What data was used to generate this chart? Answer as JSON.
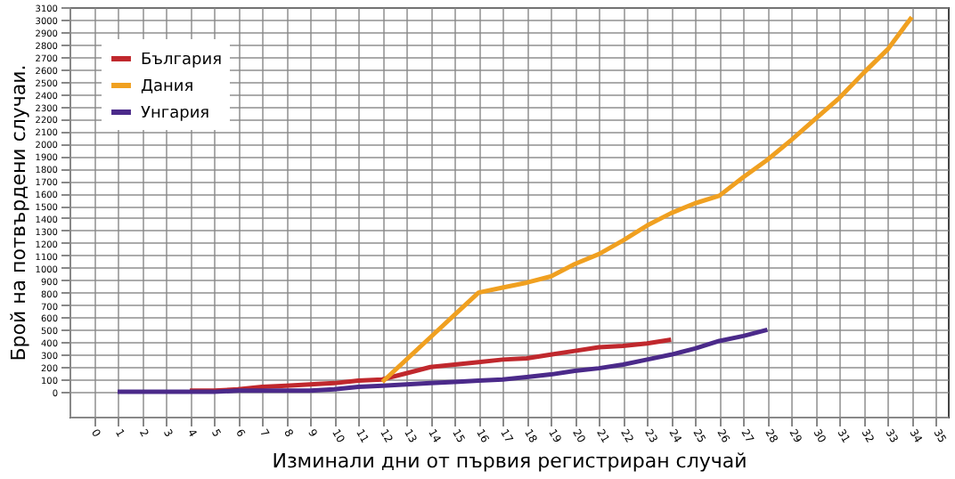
{
  "chart_data": {
    "type": "line",
    "xlabel": "Изминали дни от първия регистриран случай",
    "ylabel": "Брой на потвърдени случаи.",
    "x": [
      1,
      2,
      3,
      4,
      5,
      6,
      7,
      8,
      9,
      10,
      11,
      12,
      13,
      14,
      15,
      16,
      17,
      18,
      19,
      20,
      21,
      22,
      23,
      24,
      25,
      26,
      27,
      28,
      29,
      30,
      31,
      32,
      33,
      34
    ],
    "series": [
      {
        "name": "България",
        "color": "#c0282d",
        "values": [
          null,
          null,
          null,
          10,
          10,
          20,
          40,
          50,
          60,
          70,
          90,
          100,
          150,
          200,
          220,
          240,
          260,
          270,
          300,
          330,
          360,
          370,
          390,
          420,
          null,
          null,
          null,
          null,
          null,
          null,
          null,
          null,
          null,
          null
        ]
      },
      {
        "name": "Дания",
        "color": "#f0a020",
        "values": [
          null,
          null,
          null,
          null,
          null,
          null,
          null,
          null,
          null,
          null,
          null,
          80,
          260,
          440,
          620,
          800,
          840,
          880,
          930,
          1030,
          1110,
          1220,
          1340,
          1440,
          1520,
          1580,
          1730,
          1870,
          2030,
          2200,
          2370,
          2570,
          2760,
          3020
        ]
      },
      {
        "name": "Унгария",
        "color": "#4b2a8a",
        "values": [
          0,
          0,
          0,
          0,
          0,
          10,
          10,
          10,
          10,
          20,
          40,
          50,
          60,
          70,
          80,
          90,
          100,
          120,
          140,
          170,
          190,
          220,
          260,
          300,
          350,
          410,
          450,
          500,
          null,
          null,
          null,
          null,
          null,
          null
        ]
      }
    ],
    "xlim": [
      -1,
      35.5
    ],
    "xticks": [
      0,
      1,
      2,
      3,
      4,
      5,
      6,
      7,
      8,
      9,
      10,
      11,
      12,
      13,
      14,
      15,
      16,
      17,
      18,
      19,
      20,
      21,
      22,
      23,
      24,
      25,
      26,
      27,
      28,
      29,
      30,
      31,
      32,
      33,
      34,
      35
    ],
    "ylim": [
      -200,
      3100
    ],
    "yticks": [
      0,
      100,
      200,
      300,
      400,
      500,
      600,
      700,
      800,
      900,
      1000,
      1100,
      1200,
      1300,
      1400,
      1500,
      1600,
      1700,
      1800,
      1900,
      2000,
      2100,
      2200,
      2300,
      2400,
      2500,
      2600,
      2700,
      2800,
      2900,
      3000,
      3100
    ],
    "grid": true,
    "legend": "top left",
    "marker": "none",
    "line_style": "solid"
  }
}
